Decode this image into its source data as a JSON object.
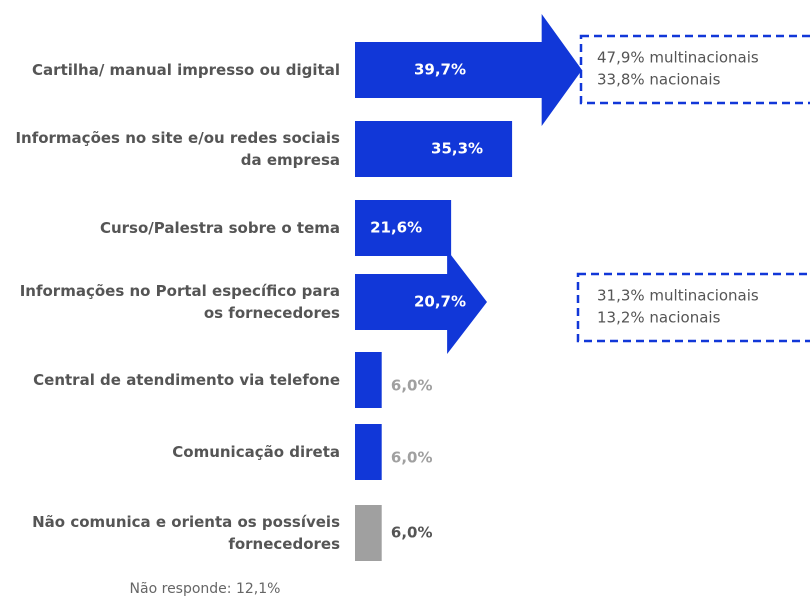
{
  "chart_data": {
    "type": "bar",
    "categories": [
      "Cartilha/ manual impresso ou digital",
      "Informações no site e/ou redes sociais da empresa",
      "Curso/Palestra sobre o tema",
      "Informações no Portal específico para os fornecedores",
      "Central de atendimento via telefone",
      "Comunicação direta",
      "Não comunica e orienta os possíveis fornecedores"
    ],
    "values": [
      39.7,
      35.3,
      21.6,
      20.7,
      6.0,
      6.0,
      6.0
    ],
    "value_labels": [
      "39,7%",
      "35,3%",
      "21,6%",
      "20,7%",
      "6,0%",
      "6,0%",
      "6,0%"
    ],
    "colors": [
      "#1137d8",
      "#1137d8",
      "#1137d8",
      "#1137d8",
      "#1137d8",
      "#1137d8",
      "#a0a0a0"
    ],
    "label_colors": [
      "#ffffff",
      "#ffffff",
      "#ffffff",
      "#ffffff",
      "#a0a0a0",
      "#a0a0a0",
      "#555555"
    ],
    "annotations": [
      [
        "47,9% multinacionais",
        "33,8% nacionais"
      ],
      null,
      null,
      [
        "31,3% multinacionais",
        "13,2% nacionais"
      ],
      null,
      null,
      null
    ],
    "footnote": "Não responde: 12,1%"
  }
}
